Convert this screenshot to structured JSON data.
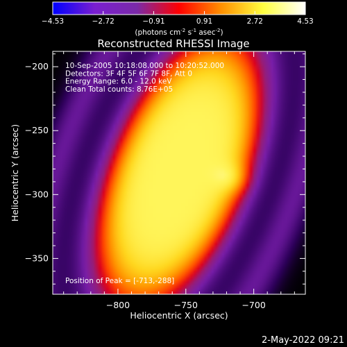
{
  "chart_data": {
    "type": "heatmap",
    "title": "Reconstructed RHESSI Image",
    "xlabel": "Heliocentric X (arcsec)",
    "ylabel": "Heliocentric Y (arcsec)",
    "xlim": [
      -848,
      -662
    ],
    "ylim": [
      -378,
      -188
    ],
    "xticks": [
      -800,
      -750,
      -700
    ],
    "yticks": [
      -200,
      -250,
      -300,
      -350
    ],
    "colorbar": {
      "min": -4.53,
      "max": 4.53,
      "ticks": [
        "-4.53",
        "-2.72",
        "-0.91",
        "0.91",
        "2.72",
        "4.53"
      ],
      "unit_main": "(photons cm",
      "unit_exp1": "-2",
      "unit_mid": " s",
      "unit_exp2": "-1",
      "unit_after": " asec",
      "unit_exp3": "-2",
      "unit_end": ")",
      "colors": [
        "#0000ff",
        "#7a1fd0",
        "#7a2aa8",
        "#ff0000",
        "#ff9000",
        "#ffff40",
        "#ffffff"
      ]
    },
    "annotations": [
      "10-Sep-2005 10:18:08.000 to 10:20:52.000",
      "Detectors: 3F 4F 5F 6F 7F 8F, Att 0",
      "Energy Range: 6.0 - 12.0 keV",
      "Clean    Total counts: 8.76E+05"
    ],
    "peak_label": "Position of Peak = [-713,-288]",
    "peak": {
      "x": -713,
      "y": -288
    },
    "source_model": {
      "center_x": -755,
      "center_y": -282,
      "semi_major": 115,
      "semi_minor": 50,
      "tilt_deg": 20
    }
  },
  "footer": {
    "timestamp": "2-May-2022 09:21"
  }
}
